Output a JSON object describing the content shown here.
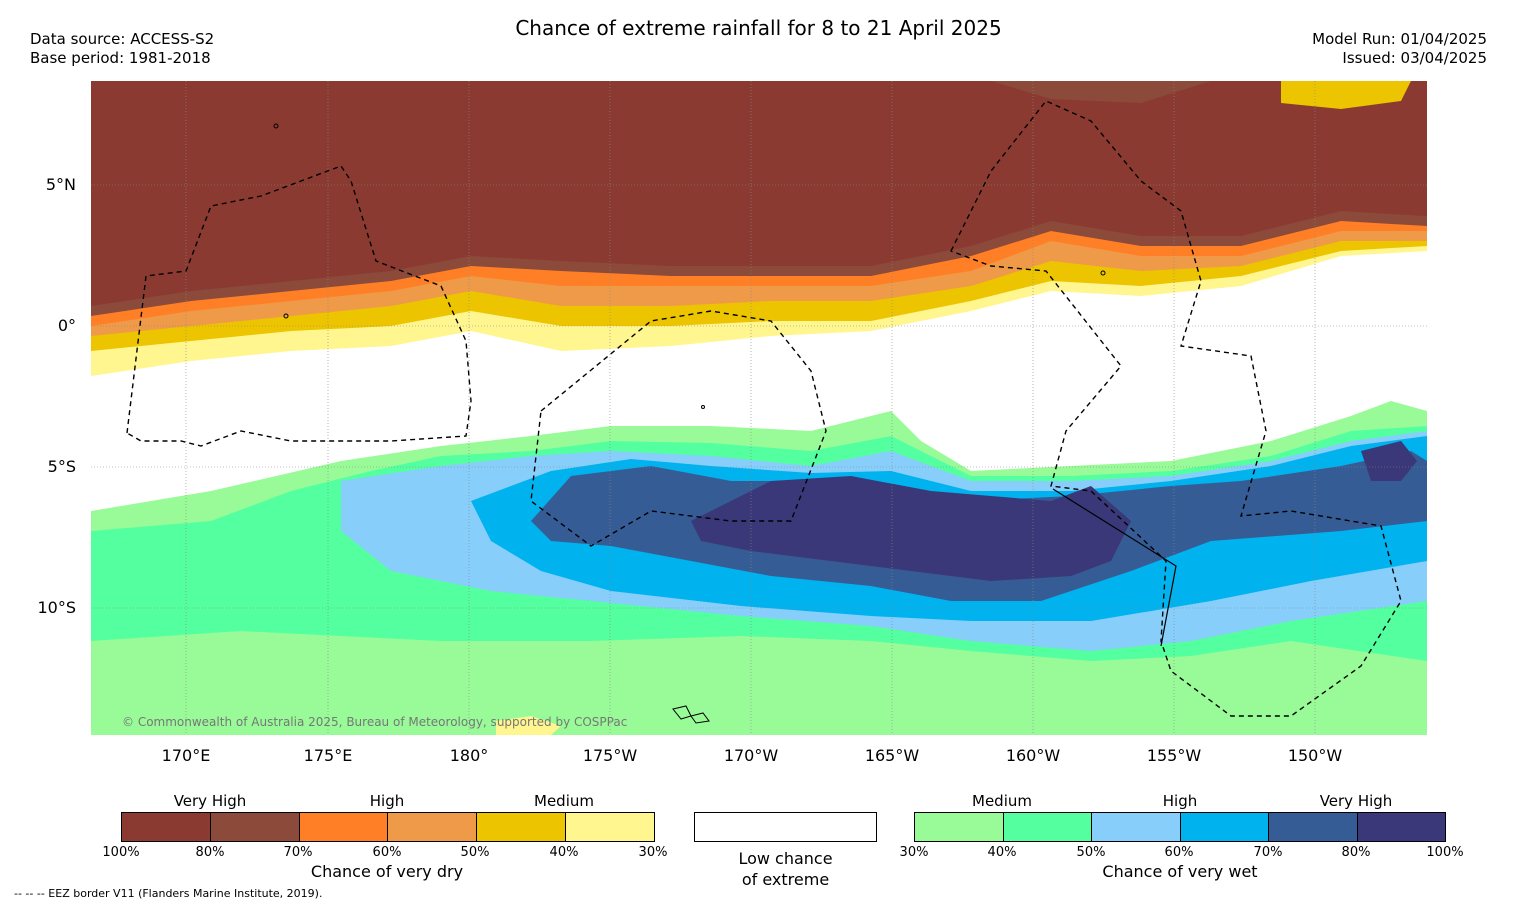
{
  "title": "Chance of extreme rainfall for 8 to 21 April 2025",
  "meta_left": {
    "source": "Data source: ACCESS-S2",
    "base": "Base period: 1981-2018"
  },
  "meta_right": {
    "run": "Model Run: 01/04/2025",
    "issued": "Issued: 03/04/2025"
  },
  "latitudes": [
    "5°N",
    "0°",
    "5°S",
    "10°S"
  ],
  "longitudes": [
    "170°E",
    "175°E",
    "180°",
    "175°W",
    "170°W",
    "165°W",
    "160°W",
    "155°W",
    "150°W"
  ],
  "credit": "© Commonwealth of Australia 2025, Bureau of Meteorology, supported by COSPPac",
  "eez_note": "-- -- -- EEZ border V11 (Flanders Marine Institute, 2019).",
  "dry_legend": {
    "headings": [
      "Very High",
      "High",
      "Medium"
    ],
    "colors": [
      "#8b3a32",
      "#8b4a3a",
      "#ff7f27",
      "#ee9a48",
      "#ecc400",
      "#fff68f"
    ],
    "ticks": [
      "100%",
      "80%",
      "70%",
      "60%",
      "50%",
      "40%",
      "30%"
    ],
    "caption": "Chance of very dry"
  },
  "neutral_legend": {
    "line1": "Low chance",
    "line2": "of extreme"
  },
  "wet_legend": {
    "headings": [
      "Medium",
      "High",
      "Very High"
    ],
    "colors": [
      "#98fb98",
      "#54ff9f",
      "#87cefa",
      "#00b2ee",
      "#365c96",
      "#3a3878"
    ],
    "ticks": [
      "30%",
      "40%",
      "50%",
      "60%",
      "70%",
      "80%",
      "100%"
    ],
    "caption": "Chance of very wet"
  }
}
